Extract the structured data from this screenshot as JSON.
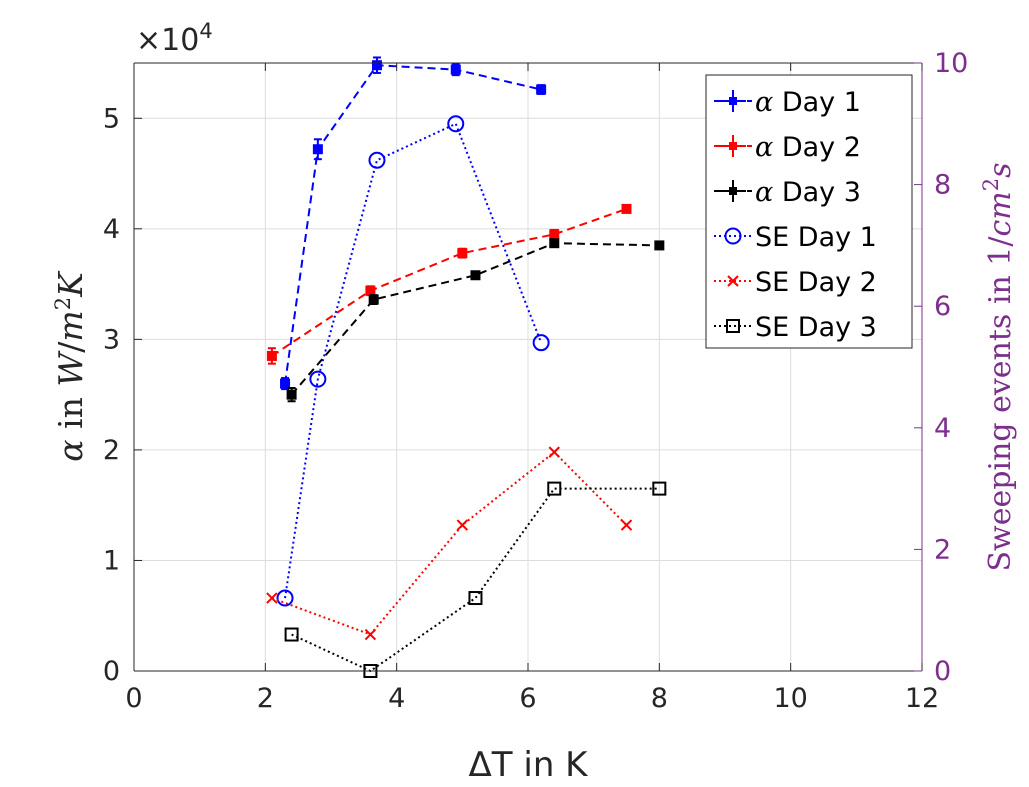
{
  "chart_data": {
    "type": "line",
    "xlabel": "ΔT in K",
    "ylabel": "α in W/m²K",
    "ylabel_parts": {
      "alpha": "α",
      "in": "in",
      "W": "W",
      "slash": "/",
      "m": "m",
      "sq": "2",
      "K": "K"
    },
    "y2label": "Sweeping events in 1/cm²s",
    "y2label_parts": {
      "text": "Sweeping events in ",
      "one": "1",
      "slash": "/",
      "cm": "cm",
      "sq": "2",
      "s": "s"
    },
    "y_exponent": "×10",
    "y_exponent_power": "4",
    "xlim": [
      0,
      12
    ],
    "ylim": [
      0,
      5.5
    ],
    "y2lim": [
      0,
      10
    ],
    "x_ticks": [
      0,
      2,
      4,
      6,
      8,
      10,
      12
    ],
    "y_ticks": [
      0,
      1,
      2,
      3,
      4,
      5
    ],
    "y2_ticks": [
      0,
      2,
      4,
      6,
      8,
      10
    ],
    "grid": true,
    "legend_position": "top-right",
    "right_axis_color": "#7E2F8E",
    "left_axis_series": [
      {
        "name": "α Day 1",
        "label_greek": "α",
        "label_rest": " Day 1",
        "color": "#0000FF",
        "marker": "star",
        "linestyle": "dashed",
        "x": [
          2.3,
          2.8,
          3.7,
          4.9,
          6.2
        ],
        "y": [
          2.6,
          4.72,
          5.48,
          5.44,
          5.26
        ],
        "err": [
          0.05,
          0.09,
          0.07,
          0.05,
          0.04
        ]
      },
      {
        "name": "α Day 2",
        "label_greek": "α",
        "label_rest": " Day 2",
        "color": "#FF0000",
        "marker": "star",
        "linestyle": "dashed",
        "x": [
          2.1,
          3.6,
          5.0,
          6.4,
          7.5
        ],
        "y": [
          2.85,
          3.44,
          3.78,
          3.95,
          4.18
        ],
        "err": [
          0.07,
          0.04,
          0.04,
          0.04,
          0.03
        ]
      },
      {
        "name": "α Day 3",
        "label_greek": "α",
        "label_rest": " Day 3",
        "color": "#000000",
        "marker": "star",
        "linestyle": "dashed",
        "x": [
          2.4,
          3.65,
          5.2,
          6.4,
          8.0
        ],
        "y": [
          2.5,
          3.36,
          3.58,
          3.87,
          3.85
        ],
        "err": [
          0.06,
          0.04,
          0.03,
          0.03,
          0.03
        ]
      }
    ],
    "right_axis_series": [
      {
        "name": "SE Day 1",
        "color": "#0000FF",
        "marker": "circle",
        "linestyle": "dotted",
        "x": [
          2.3,
          2.8,
          3.7,
          4.9,
          6.2
        ],
        "y": [
          1.2,
          4.8,
          8.4,
          9.0,
          5.4
        ]
      },
      {
        "name": "SE Day 2",
        "color": "#FF0000",
        "marker": "x",
        "linestyle": "dotted",
        "x": [
          2.1,
          3.6,
          5.0,
          6.4,
          7.5
        ],
        "y": [
          1.2,
          0.6,
          2.4,
          3.6,
          2.4
        ]
      },
      {
        "name": "SE Day 3",
        "color": "#000000",
        "marker": "square",
        "linestyle": "dotted",
        "x": [
          2.4,
          3.6,
          5.2,
          6.4,
          8.0
        ],
        "y": [
          0.6,
          0.0,
          1.2,
          3.0,
          3.0
        ]
      }
    ]
  }
}
